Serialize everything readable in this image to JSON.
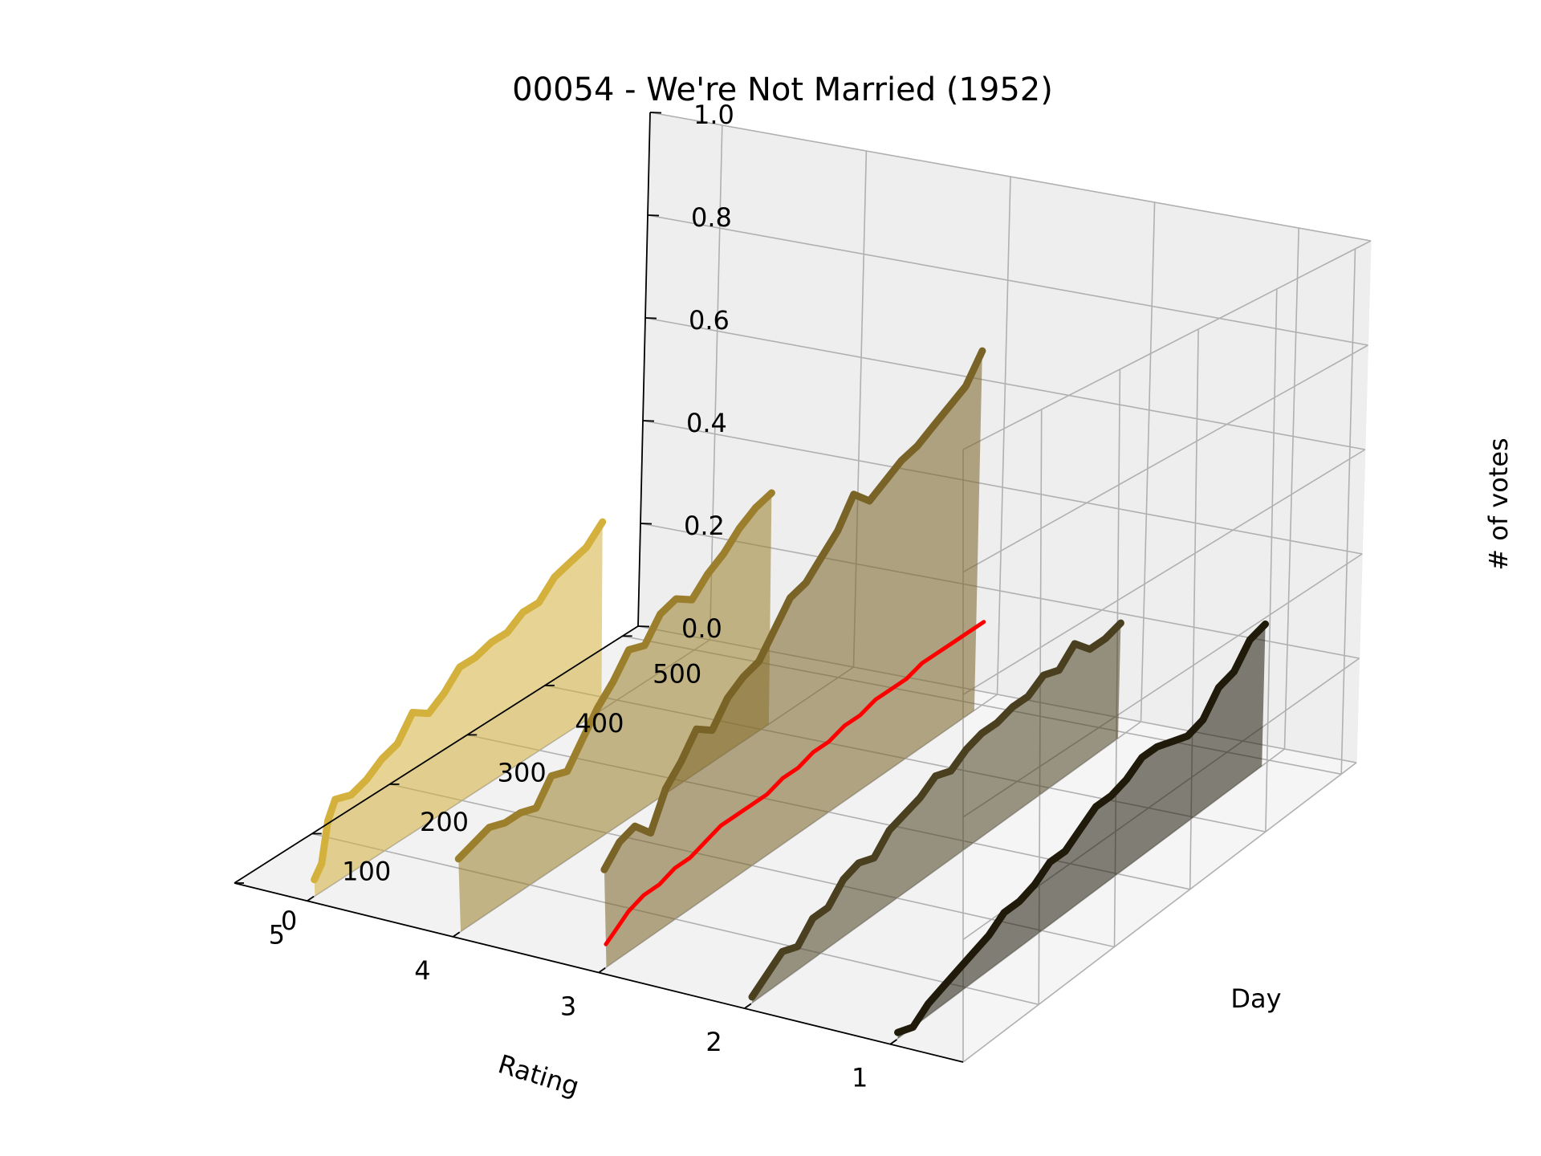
{
  "chart_data": {
    "type": "line",
    "title": "00054 - We're Not Married (1952)",
    "xlabel": "Rating",
    "ylabel": "Day",
    "zlabel": "# of votes",
    "x_ticks": [
      "1",
      "2",
      "3",
      "4",
      "5"
    ],
    "y_ticks": [
      "0",
      "100",
      "200",
      "300",
      "400",
      "500"
    ],
    "z_ticks": [
      "0.0",
      "0.2",
      "0.4",
      "0.6",
      "0.8",
      "1.0"
    ],
    "xlim": [
      0.5,
      5.5
    ],
    "ylim": [
      0,
      520
    ],
    "zlim": [
      0,
      1
    ],
    "grid": true,
    "series": [
      {
        "rating": 5,
        "color": "#d4b03c",
        "days": [
          10,
          20,
          30,
          40,
          60,
          80,
          100,
          120,
          140,
          160,
          180,
          200,
          220,
          240,
          260,
          280,
          300,
          320,
          340,
          360,
          380
        ],
        "values": [
          0.03,
          0.05,
          0.12,
          0.15,
          0.14,
          0.15,
          0.17,
          0.18,
          0.22,
          0.2,
          0.22,
          0.25,
          0.25,
          0.26,
          0.26,
          0.28,
          0.28,
          0.31,
          0.32,
          0.33,
          0.36
        ]
      },
      {
        "rating": 4,
        "color": "#9b7f2c",
        "days": [
          10,
          30,
          50,
          70,
          90,
          110,
          130,
          150,
          170,
          190,
          210,
          230,
          250,
          270,
          290,
          310,
          330,
          350,
          370,
          390,
          410
        ],
        "values": [
          0.13,
          0.14,
          0.15,
          0.14,
          0.14,
          0.13,
          0.17,
          0.16,
          0.2,
          0.24,
          0.27,
          0.31,
          0.3,
          0.34,
          0.35,
          0.33,
          0.36,
          0.38,
          0.41,
          0.43,
          0.44
        ]
      },
      {
        "rating": 3,
        "color": "#7a6326",
        "days": [
          10,
          30,
          50,
          70,
          90,
          110,
          130,
          150,
          170,
          190,
          210,
          230,
          250,
          270,
          290,
          310,
          330,
          350,
          370,
          390,
          410,
          430,
          450,
          470,
          490
        ],
        "values": [
          0.17,
          0.2,
          0.21,
          0.18,
          0.24,
          0.27,
          0.31,
          0.29,
          0.33,
          0.35,
          0.36,
          0.4,
          0.44,
          0.45,
          0.48,
          0.51,
          0.56,
          0.53,
          0.55,
          0.57,
          0.58,
          0.6,
          0.62,
          0.64,
          0.69
        ]
      },
      {
        "rating": 2,
        "color": "#4a4020",
        "days": [
          10,
          30,
          50,
          70,
          90,
          110,
          130,
          150,
          170,
          190,
          210,
          230,
          250,
          270,
          290,
          310,
          330,
          350,
          370,
          390,
          410,
          430,
          450,
          470,
          490
        ],
        "values": [
          0.01,
          0.03,
          0.05,
          0.04,
          0.07,
          0.07,
          0.1,
          0.11,
          0.1,
          0.13,
          0.14,
          0.15,
          0.17,
          0.16,
          0.18,
          0.19,
          0.19,
          0.2,
          0.2,
          0.22,
          0.21,
          0.24,
          0.21,
          0.21,
          0.22
        ]
      },
      {
        "rating": 1,
        "color": "#1f1a0a",
        "days": [
          10,
          30,
          50,
          70,
          90,
          110,
          130,
          150,
          170,
          190,
          210,
          230,
          250,
          270,
          290,
          310,
          330,
          350,
          370,
          390,
          410,
          430,
          450,
          470,
          490
        ],
        "values": [
          0.01,
          0.0,
          0.02,
          0.03,
          0.04,
          0.05,
          0.06,
          0.08,
          0.08,
          0.09,
          0.11,
          0.11,
          0.13,
          0.15,
          0.15,
          0.16,
          0.18,
          0.18,
          0.17,
          0.16,
          0.17,
          0.21,
          0.22,
          0.26,
          0.27
        ]
      },
      {
        "rating": "mean",
        "color": "#ff0000",
        "days": [
          10,
          20,
          30,
          40,
          60,
          80,
          100,
          120,
          140,
          160,
          180,
          200,
          220,
          240,
          260,
          280,
          300,
          320,
          340,
          360,
          380,
          400,
          420,
          440,
          460,
          480,
          500
        ],
        "values": [
          0.04,
          0.05,
          0.06,
          0.07,
          0.08,
          0.08,
          0.09,
          0.09,
          0.1,
          0.11,
          0.11,
          0.11,
          0.11,
          0.12,
          0.12,
          0.13,
          0.13,
          0.14,
          0.14,
          0.15,
          0.15,
          0.15,
          0.16,
          0.16,
          0.16,
          0.16,
          0.16
        ]
      }
    ]
  }
}
